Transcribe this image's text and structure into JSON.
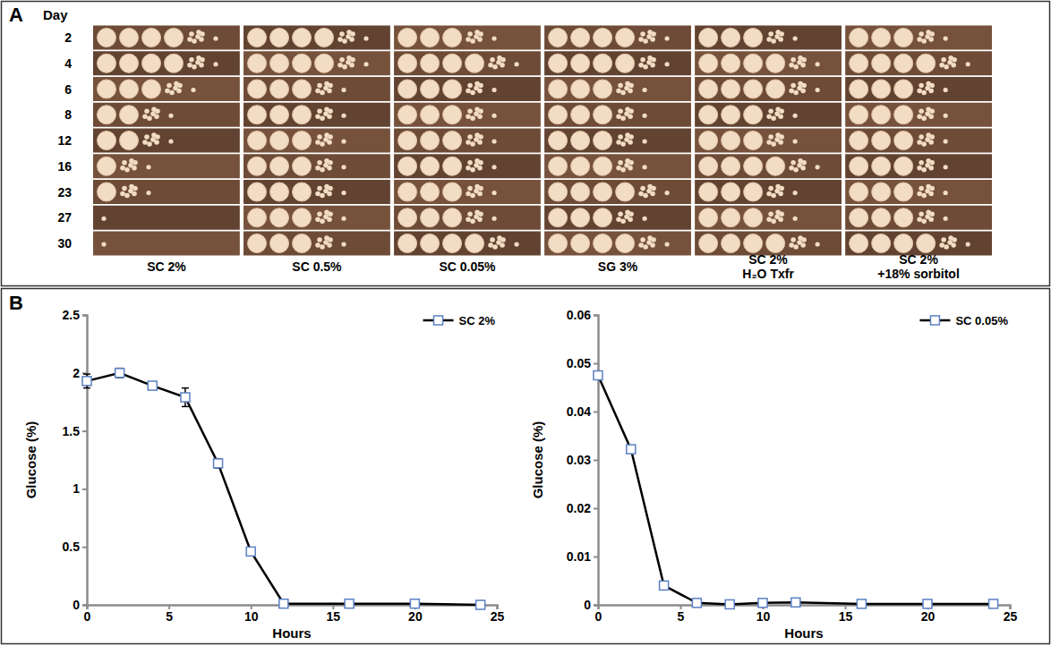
{
  "chart_data": [
    {
      "type": "spot_assay",
      "panel_label": "A",
      "row_title": "Day",
      "rows": [
        2,
        4,
        6,
        8,
        12,
        16,
        23,
        27,
        30
      ],
      "columns": [
        [
          "SC 2%"
        ],
        [
          "SC 0.5%"
        ],
        [
          "SC 0.05%"
        ],
        [
          "SG 3%"
        ],
        [
          "SC 2%",
          "H₂O Txfr"
        ],
        [
          "SC 2%",
          "+18% sorbitol"
        ]
      ],
      "values": [
        [
          6,
          6,
          5,
          4,
          4,
          3,
          3,
          1,
          1
        ],
        [
          6,
          6,
          5,
          5,
          5,
          5,
          5,
          5,
          5
        ],
        [
          5,
          6,
          5,
          5,
          5,
          5,
          5,
          5,
          6
        ],
        [
          6,
          6,
          5,
          5,
          5,
          5,
          6,
          5,
          6
        ],
        [
          5,
          6,
          6,
          5,
          5,
          6,
          5,
          5,
          6
        ],
        [
          5,
          6,
          5,
          5,
          5,
          5,
          5,
          5,
          6
        ]
      ]
    },
    {
      "type": "line",
      "panel_label": "B",
      "x": [
        0,
        2,
        4,
        6,
        8,
        10,
        12,
        16,
        20,
        24
      ],
      "series": [
        {
          "name": "SC 2%",
          "color": "#000000",
          "marker": "square",
          "values": [
            1.93,
            2.0,
            1.89,
            1.79,
            1.22,
            0.46,
            0.01,
            0.01,
            0.01,
            0.0
          ],
          "errors": [
            0.06,
            0.04,
            0.03,
            0.08,
            0.04,
            0.03,
            0.01,
            0.01,
            0.01,
            0.01
          ]
        }
      ],
      "xlim": [
        0,
        25
      ],
      "xticks": [
        0,
        5,
        10,
        15,
        20,
        25
      ],
      "ylim": [
        0,
        2.5
      ],
      "yticks": [
        0,
        0.5,
        1,
        1.5,
        2,
        2.5
      ],
      "x_label": "Hours",
      "y_label": "Glucose (%)",
      "legend": "upper right",
      "grid": false
    },
    {
      "type": "line",
      "x": [
        0,
        2,
        4,
        6,
        8,
        10,
        12,
        16,
        20,
        24
      ],
      "series": [
        {
          "name": "SC 0.05%",
          "color": "#000000",
          "marker": "square",
          "values": [
            0.0475,
            0.0322,
            0.004,
            0.0004,
            0.0001,
            0.0004,
            0.0005,
            0.0002,
            0.0002,
            0.0002
          ],
          "errors": [
            0.0008,
            0.0006,
            0.0004,
            0.0002,
            0.0001,
            0.0002,
            0.0002,
            0.0001,
            0.0001,
            0.0001
          ]
        }
      ],
      "xlim": [
        0,
        25
      ],
      "xticks": [
        0,
        5,
        10,
        15,
        20,
        25
      ],
      "ylim": [
        0,
        0.06
      ],
      "yticks": [
        0,
        0.01,
        0.02,
        0.03,
        0.04,
        0.05,
        0.06
      ],
      "x_label": "Hours",
      "y_label": "Glucose (%)",
      "legend": "upper right",
      "grid": false
    }
  ]
}
